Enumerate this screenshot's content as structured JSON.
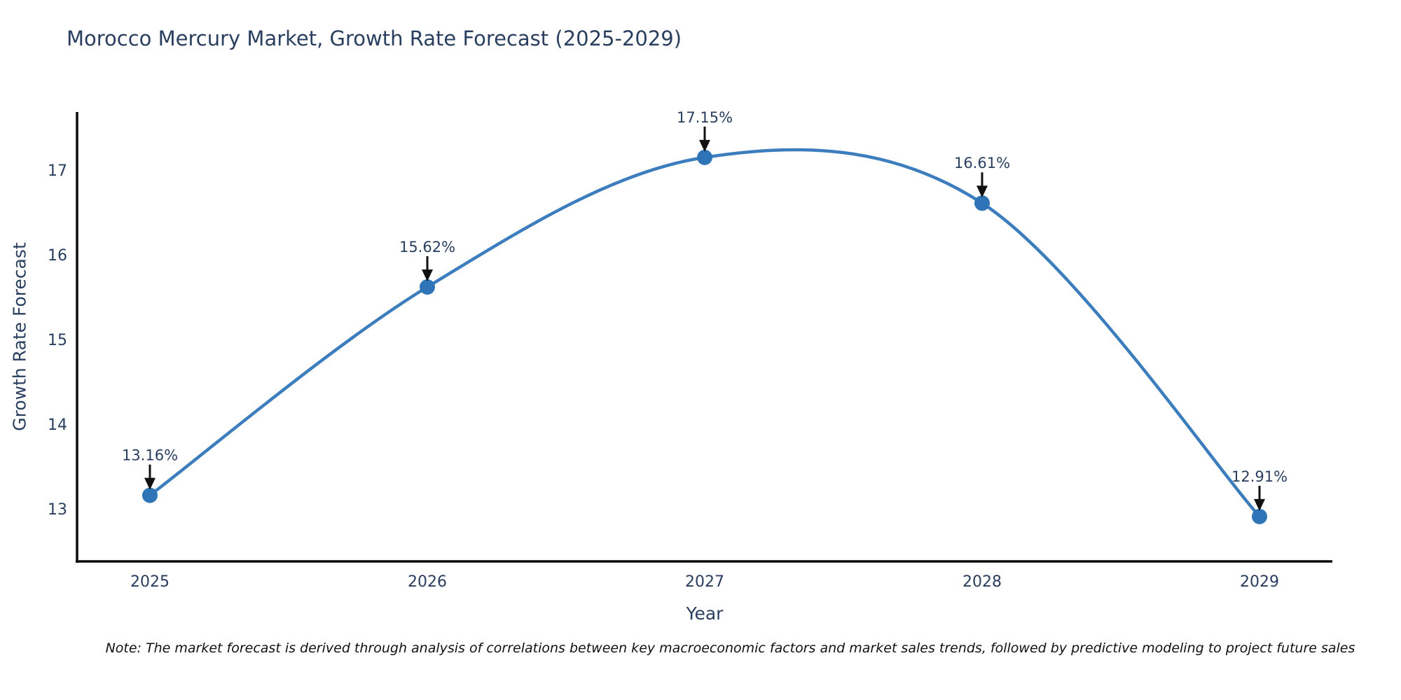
{
  "title": "Morocco Mercury Market, Growth Rate Forecast (2025-2029)",
  "note": "Note: The market forecast is derived through analysis of correlations between key macroeconomic factors and market sales trends, followed by predictive modeling to project future sales",
  "chart_data": {
    "type": "line",
    "line_shape": "spline",
    "title": "Morocco Mercury Market, Growth Rate Forecast (2025-2029)",
    "xlabel": "Year",
    "ylabel": "Growth Rate Forecast",
    "categories": [
      2025,
      2026,
      2027,
      2028,
      2029
    ],
    "values": [
      13.16,
      15.62,
      17.15,
      16.61,
      12.91
    ],
    "point_labels": [
      "13.16%",
      "15.62%",
      "17.15%",
      "16.61%",
      "12.91%"
    ],
    "yticks": [
      13,
      14,
      15,
      16,
      17
    ],
    "ylim": [
      12.38,
      17.69
    ],
    "grid": false,
    "legend": "none",
    "colors": {
      "line": "#3c7dbd",
      "marker": "#2e74b6",
      "axis_line": "#0a0a0a",
      "text": "#2a3f5f",
      "annotation_arrow": "#111111",
      "background": "#ffffff"
    }
  }
}
